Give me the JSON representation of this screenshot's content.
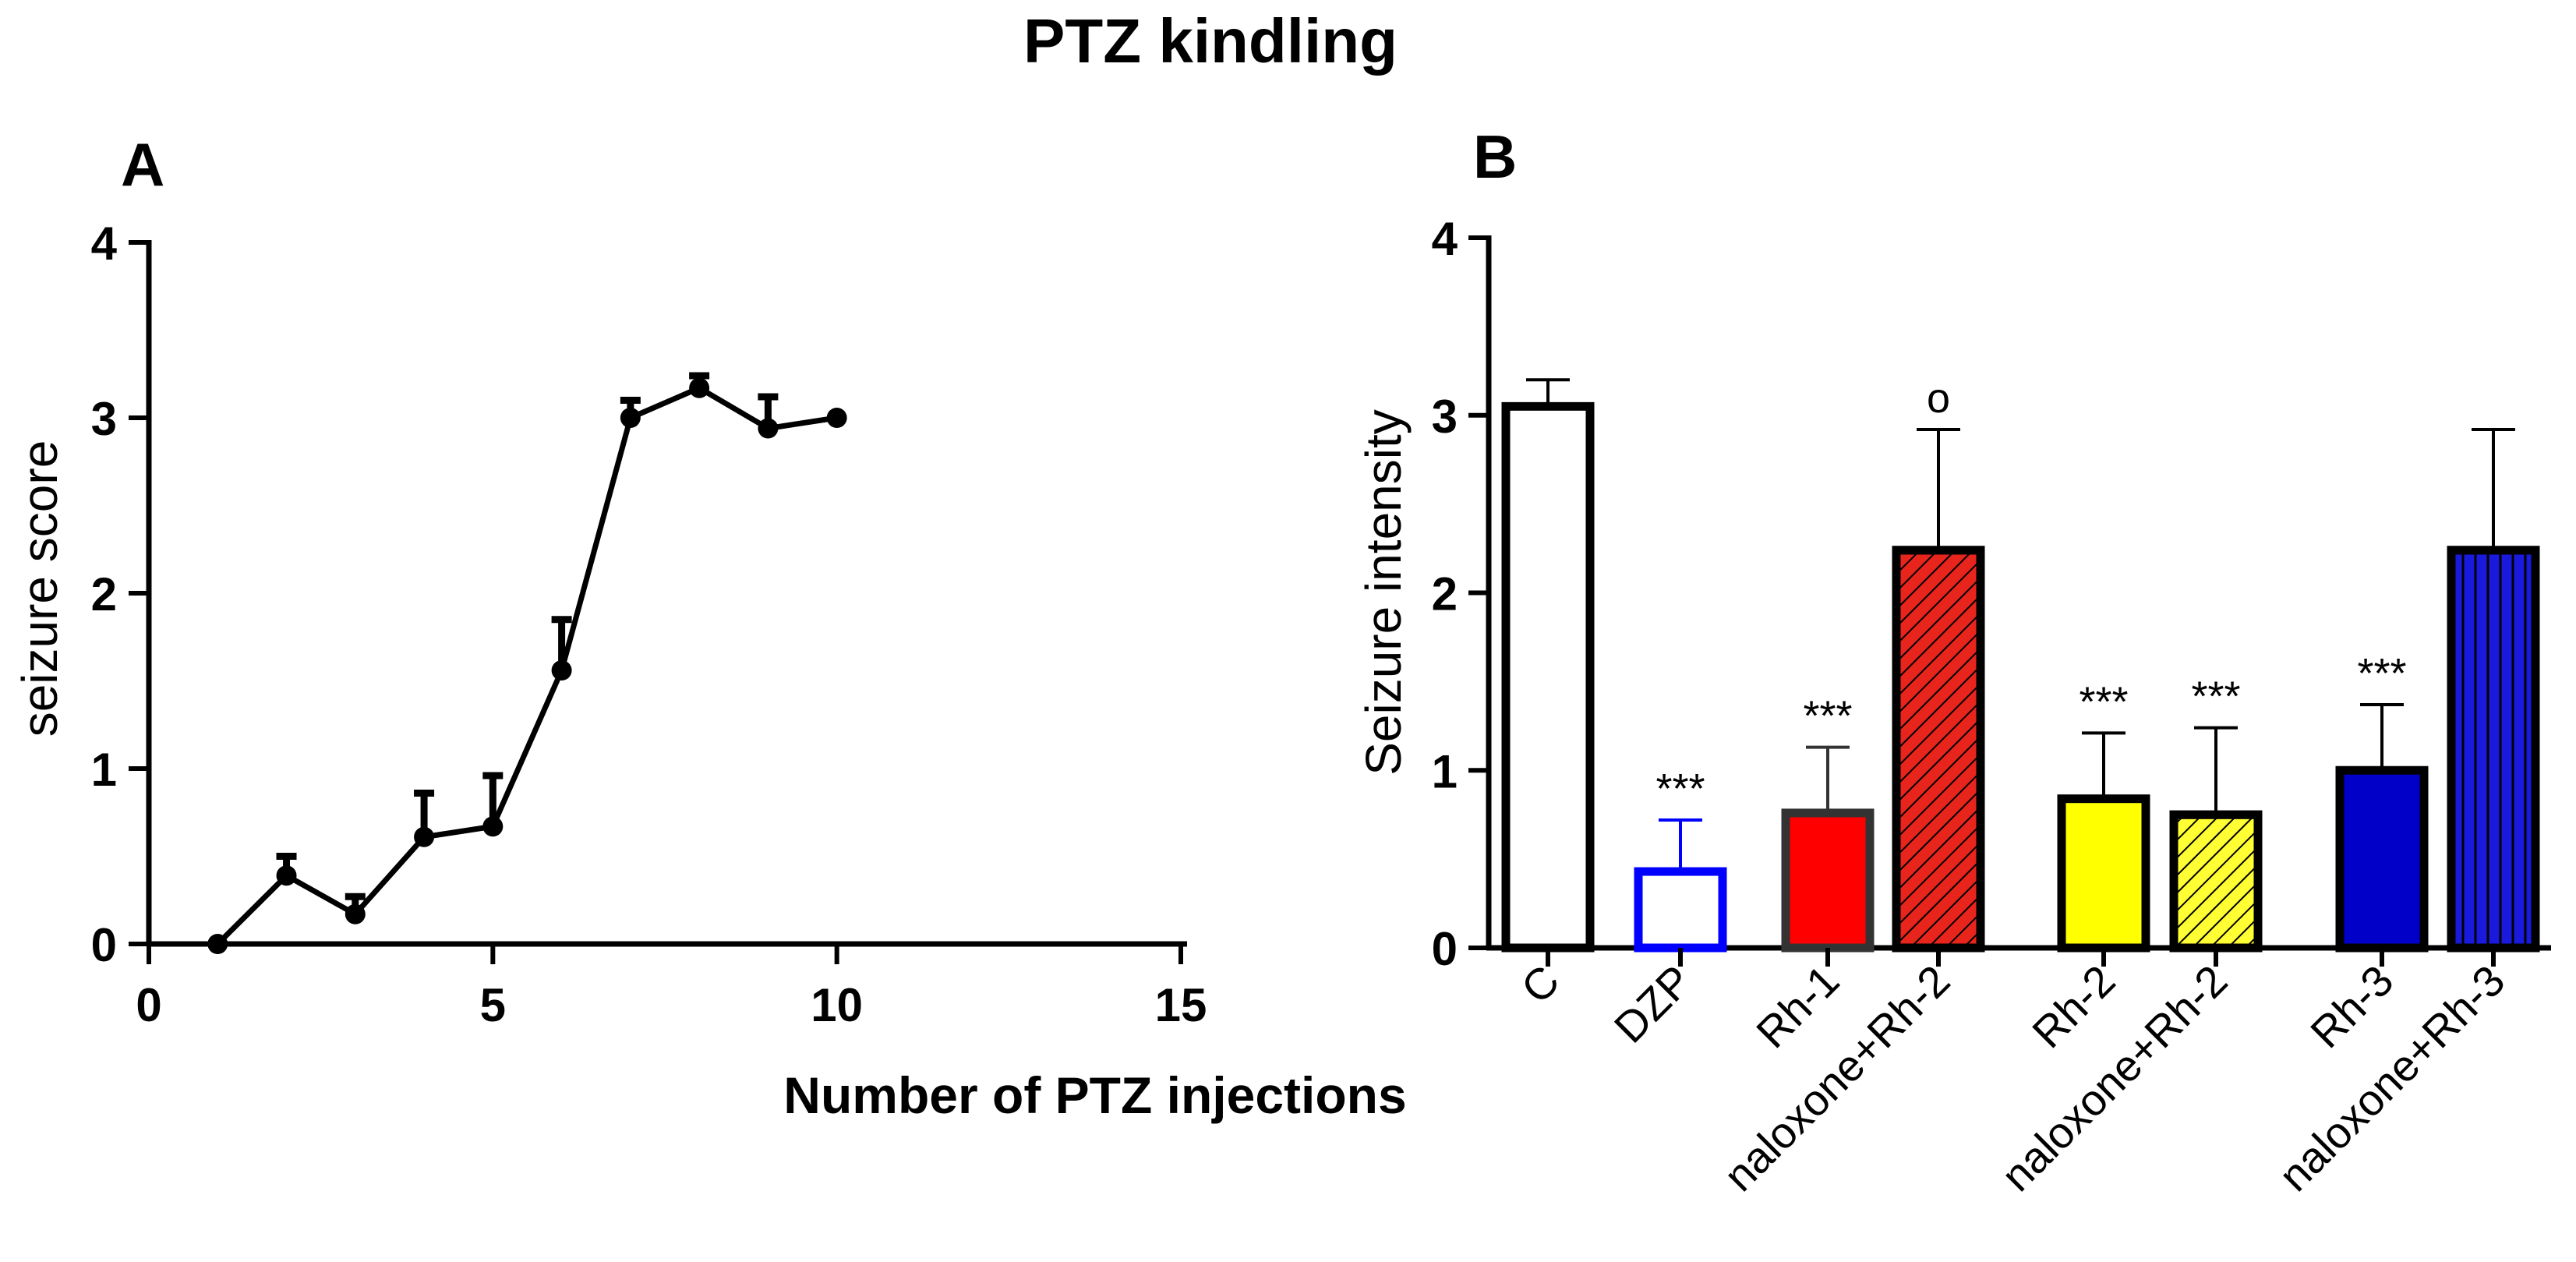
{
  "figure_title": "PTZ kindling",
  "chart_data": [
    {
      "panel_label": "A",
      "type": "line",
      "title": "",
      "xlabel": "Number of PTZ injections",
      "ylabel": "seizure score",
      "xlim": [
        0,
        15
      ],
      "ylim": [
        0,
        4
      ],
      "xticks": [
        0,
        5,
        10,
        15
      ],
      "yticks": [
        0,
        1,
        2,
        3,
        4
      ],
      "grid": false,
      "series": [
        {
          "name": "PTZ kindling",
          "color": "#000000",
          "x": [
            1,
            2,
            3,
            4,
            5,
            6,
            7,
            8,
            9,
            10
          ],
          "y": [
            0,
            0.39,
            0.17,
            0.61,
            0.67,
            1.56,
            3.0,
            3.17,
            2.94,
            3.0
          ],
          "error": [
            0,
            0.11,
            0.1,
            0.25,
            0.29,
            0.29,
            0.1,
            0.07,
            0.18,
            0
          ]
        }
      ]
    },
    {
      "panel_label": "B",
      "type": "bar",
      "title": "",
      "xlabel": "",
      "ylabel": "Seizure intensity",
      "ylim": [
        0,
        4
      ],
      "yticks": [
        0,
        1,
        2,
        3,
        4
      ],
      "grid": false,
      "categories": [
        "C",
        "DZP",
        "Rh-1",
        "naloxone+Rh-2",
        "Rh-2",
        "naloxone+Rh-2",
        "Rh-3",
        "naloxone+Rh-3"
      ],
      "values": [
        3.05,
        0.43,
        0.76,
        2.24,
        0.84,
        0.75,
        1.0,
        2.24
      ],
      "errors": [
        0.15,
        0.29,
        0.37,
        0.68,
        0.37,
        0.49,
        0.37,
        0.68
      ],
      "annotations": [
        "",
        "***",
        "***",
        "o",
        "***",
        "***",
        "***",
        ""
      ],
      "fills": [
        "#ffffff",
        "#ffffff",
        "#ff0000",
        "#e8251c",
        "#ffff00",
        "#ffff33",
        "#0000c8",
        "#1a1adc"
      ],
      "edges": [
        "#000000",
        "#0000ff",
        "#333333",
        "#000000",
        "#000000",
        "#000000",
        "#000000",
        "#000000"
      ],
      "hatches": [
        "none",
        "none",
        "none",
        "diag",
        "none",
        "diag",
        "none",
        "vert"
      ]
    }
  ]
}
